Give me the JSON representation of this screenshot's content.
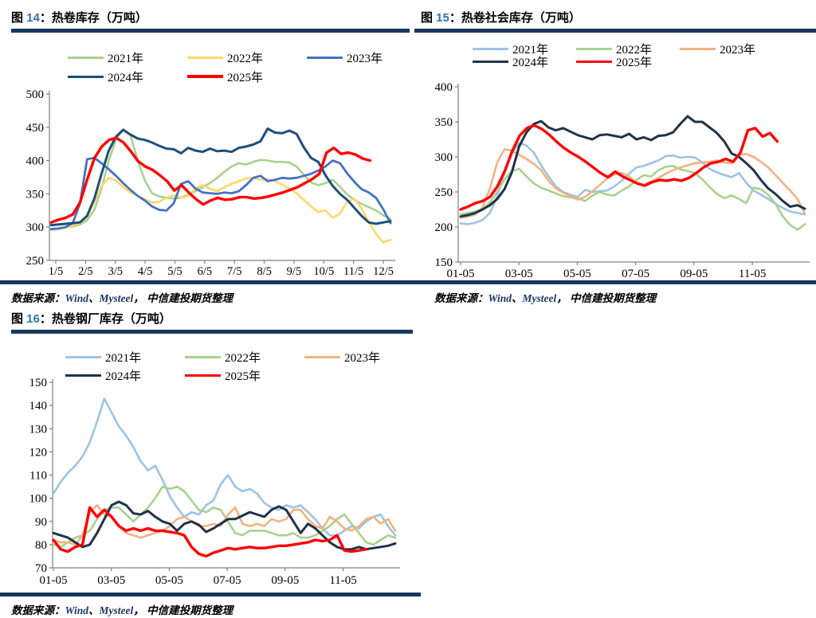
{
  "accent_colors": {
    "divider_navy": "#17375e",
    "title_number_blue": "#2e74b5",
    "source_en_blue": "#17375e"
  },
  "chart_data": [
    {
      "id": "fig14",
      "type": "line",
      "title": {
        "word": "图 ",
        "num": "14",
        "rest": "：热卷库存（万吨）"
      },
      "source": {
        "label": "数据来源：",
        "w1": "Wind",
        "sep1": "、",
        "w2": "Mysteel",
        "sep2": "， ",
        "rest": "中信建投期货整理"
      },
      "ylim": [
        250,
        500
      ],
      "y_step": 50,
      "x_domain_months": 11.4,
      "x_tick_months": [
        0,
        1,
        2,
        3,
        4,
        5,
        6,
        7,
        8,
        9,
        10,
        11
      ],
      "x_tick_labels": [
        "1/5",
        "2/5",
        "3/5",
        "4/5",
        "5/5",
        "6/5",
        "7/5",
        "8/5",
        "9/5",
        "10/5",
        "11/5",
        "12/5"
      ],
      "grid": false,
      "legend_position": "top",
      "series": [
        {
          "name": "2021",
          "label": "2021年",
          "color": "#a9d18e",
          "width": 2.6,
          "end_frac": 1,
          "values": [
            296,
            297,
            299,
            301,
            304,
            310,
            326,
            358,
            400,
            432,
            447,
            438,
            400,
            370,
            351,
            346,
            344,
            343,
            344,
            349,
            354,
            360,
            366,
            374,
            383,
            391,
            396,
            394,
            398,
            401,
            400,
            398,
            398,
            397,
            391,
            379,
            367,
            363,
            366,
            371,
            361,
            349,
            341,
            335,
            330,
            325,
            318,
            312
          ]
        },
        {
          "name": "2022",
          "label": "2022年",
          "color": "#ffd966",
          "width": 2.6,
          "end_frac": 1,
          "values": [
            296,
            297,
            299,
            302,
            306,
            315,
            338,
            362,
            374,
            370,
            360,
            352,
            347,
            342,
            337,
            338,
            344,
            348,
            344,
            347,
            358,
            363,
            358,
            354,
            360,
            365,
            369,
            373,
            374,
            371,
            372,
            369,
            364,
            358,
            351,
            341,
            331,
            323,
            325,
            314,
            320,
            338,
            343,
            328,
            308,
            290,
            277,
            281
          ]
        },
        {
          "name": "2023",
          "label": "2023年",
          "color": "#4472c4",
          "width": 2.8,
          "end_frac": 1,
          "values": [
            297,
            298,
            300,
            306,
            335,
            402,
            404,
            396,
            387,
            377,
            366,
            356,
            347,
            340,
            331,
            326,
            325,
            336,
            365,
            369,
            358,
            352,
            351,
            350,
            352,
            351,
            354,
            363,
            374,
            377,
            369,
            371,
            374,
            373,
            374,
            377,
            380,
            385,
            391,
            400,
            396,
            381,
            368,
            357,
            352,
            344,
            327,
            306
          ]
        },
        {
          "name": "2024",
          "label": "2024年",
          "color": "#1f4e79",
          "width": 3.0,
          "end_frac": 1,
          "values": [
            303,
            304,
            305,
            306,
            307,
            317,
            343,
            380,
            415,
            436,
            446,
            439,
            433,
            431,
            427,
            422,
            418,
            417,
            411,
            419,
            415,
            413,
            418,
            414,
            415,
            413,
            419,
            421,
            424,
            429,
            448,
            442,
            441,
            445,
            440,
            420,
            404,
            398,
            378,
            362,
            350,
            341,
            329,
            317,
            307,
            305,
            307,
            309
          ]
        },
        {
          "name": "2025",
          "label": "2025年",
          "color": "#ff0000",
          "width": 3.4,
          "end_frac": 0.94,
          "values": [
            307,
            311,
            314,
            319,
            337,
            372,
            404,
            421,
            431,
            434,
            427,
            414,
            399,
            391,
            386,
            378,
            369,
            355,
            363,
            352,
            342,
            334,
            340,
            344,
            341,
            342,
            345,
            345,
            343,
            344,
            346,
            349,
            352,
            356,
            360,
            366,
            372,
            380,
            412,
            419,
            410,
            412,
            409,
            403,
            400
          ]
        }
      ]
    },
    {
      "id": "fig15",
      "type": "line",
      "title": {
        "word": "图 ",
        "num": "15",
        "rest": "：热卷社会库存（万吨）"
      },
      "source": {
        "label": "数据来源：",
        "w1": "Wind",
        "sep1": "、",
        "w2": "Mysteel",
        "sep2": "， ",
        "rest": "中信建投期货整理"
      },
      "ylim": [
        150,
        400
      ],
      "y_step": 50,
      "x_domain_months": 11.8,
      "x_tick_months": [
        0,
        2,
        4,
        6,
        8,
        10
      ],
      "x_tick_labels": [
        "01-05",
        "03-05",
        "05-05",
        "07-05",
        "09-05",
        "11-05"
      ],
      "grid": false,
      "legend_position": "top",
      "series": [
        {
          "name": "2021",
          "label": "2021年",
          "color": "#9dc3e6",
          "width": 2.6,
          "end_frac": 1,
          "values": [
            205,
            204,
            206,
            210,
            220,
            244,
            278,
            305,
            320,
            316,
            306,
            288,
            272,
            258,
            250,
            246,
            243,
            253,
            250,
            251,
            252,
            258,
            266,
            276,
            285,
            287,
            291,
            295,
            301,
            302,
            299,
            300,
            299,
            292,
            283,
            278,
            274,
            271,
            277,
            263,
            252,
            246,
            240,
            233,
            227,
            222,
            220,
            218
          ]
        },
        {
          "name": "2022",
          "label": "2022年",
          "color": "#a9d18e",
          "width": 2.6,
          "end_frac": 1,
          "values": [
            218,
            220,
            222,
            226,
            235,
            250,
            268,
            280,
            283,
            272,
            262,
            256,
            252,
            248,
            244,
            242,
            241,
            237,
            245,
            250,
            246,
            245,
            252,
            258,
            267,
            274,
            272,
            281,
            286,
            287,
            282,
            280,
            277,
            268,
            257,
            247,
            241,
            245,
            240,
            234,
            256,
            254,
            246,
            233,
            215,
            203,
            196,
            204
          ]
        },
        {
          "name": "2023",
          "label": "2023年",
          "color": "#f4b183",
          "width": 2.6,
          "end_frac": 1,
          "values": [
            213,
            215,
            218,
            228,
            255,
            292,
            311,
            309,
            303,
            297,
            290,
            281,
            266,
            255,
            249,
            244,
            239,
            243,
            251,
            260,
            269,
            275,
            277,
            272,
            263,
            260,
            265,
            270,
            276,
            281,
            285,
            288,
            291,
            292,
            293,
            295,
            292,
            291,
            303,
            304,
            300,
            293,
            285,
            274,
            263,
            252,
            240,
            219
          ]
        },
        {
          "name": "2024",
          "label": "2024年",
          "color": "#1f3349",
          "width": 3.0,
          "end_frac": 1,
          "values": [
            215,
            217,
            220,
            225,
            231,
            240,
            254,
            278,
            315,
            335,
            347,
            351,
            342,
            338,
            341,
            336,
            331,
            328,
            325,
            331,
            332,
            330,
            328,
            333,
            325,
            328,
            324,
            330,
            331,
            335,
            347,
            358,
            350,
            350,
            342,
            334,
            322,
            305,
            300,
            291,
            281,
            267,
            255,
            247,
            237,
            229,
            231,
            226
          ]
        },
        {
          "name": "2025",
          "label": "2025年",
          "color": "#ff0000",
          "width": 3.4,
          "end_frac": 0.92,
          "values": [
            225,
            229,
            234,
            237,
            243,
            258,
            280,
            308,
            330,
            341,
            345,
            340,
            332,
            322,
            313,
            306,
            300,
            293,
            285,
            277,
            271,
            279,
            272,
            267,
            262,
            259,
            264,
            267,
            266,
            268,
            266,
            270,
            277,
            285,
            291,
            293,
            297,
            293,
            306,
            338,
            341,
            329,
            334,
            322
          ]
        }
      ]
    },
    {
      "id": "fig16",
      "type": "line",
      "title": {
        "word": "图 ",
        "num": "16",
        "rest": "：热卷钢厂库存（万吨）"
      },
      "source": {
        "label": "数据来源：",
        "w1": "Wind",
        "sep1": "、",
        "w2": "Mysteel",
        "sep2": "， ",
        "rest": "中信建投期货整理"
      },
      "ylim": [
        70,
        150
      ],
      "y_step": 10,
      "x_domain_months": 11.8,
      "x_tick_months": [
        0,
        2,
        4,
        6,
        8,
        10
      ],
      "x_tick_labels": [
        "01-05",
        "03-05",
        "05-05",
        "07-05",
        "09-05",
        "11-05"
      ],
      "grid": false,
      "legend_position": "top",
      "series": [
        {
          "name": "2021",
          "label": "2021年",
          "color": "#9dc3e6",
          "width": 2.6,
          "end_frac": 1,
          "values": [
            102,
            107,
            111,
            114,
            118,
            124,
            133,
            143,
            137,
            131,
            127,
            122,
            116,
            112,
            114,
            108,
            101,
            96,
            92,
            94,
            93,
            97,
            99,
            106,
            110,
            105,
            103,
            104,
            102,
            98,
            96,
            95,
            97,
            96,
            97,
            94,
            91,
            87,
            84,
            84,
            86,
            88,
            87,
            90,
            92,
            93,
            88,
            84
          ]
        },
        {
          "name": "2022",
          "label": "2022年",
          "color": "#a9d18e",
          "width": 2.6,
          "end_frac": 1,
          "values": [
            80,
            79,
            81,
            83,
            84,
            86,
            91,
            95,
            96,
            96,
            93,
            90,
            93,
            96,
            100,
            105,
            104,
            105,
            103,
            99,
            95,
            94,
            96,
            95,
            90,
            85,
            84,
            86,
            86,
            86,
            85,
            84,
            84,
            85,
            83,
            83,
            84,
            86,
            88,
            91,
            93,
            89,
            85,
            81,
            80,
            82,
            84,
            83
          ]
        },
        {
          "name": "2023",
          "label": "2023年",
          "color": "#f4b183",
          "width": 2.6,
          "end_frac": 1,
          "values": [
            82,
            81,
            81,
            80,
            84,
            94,
            97,
            93,
            92,
            88,
            85,
            84,
            83,
            84,
            85,
            86,
            88,
            91,
            92,
            90,
            88,
            88,
            89,
            88,
            93,
            96,
            89,
            88,
            89,
            88,
            91,
            90,
            91,
            95,
            95,
            91,
            88,
            87,
            92,
            90,
            87,
            86,
            88,
            91,
            92,
            89,
            91,
            86
          ]
        },
        {
          "name": "2024",
          "label": "2024年",
          "color": "#1f3349",
          "width": 3.0,
          "end_frac": 1,
          "values": [
            85,
            84,
            83,
            81,
            79,
            80,
            85,
            91,
            97,
            98.5,
            97,
            93.5,
            93,
            94.5,
            92,
            90,
            89,
            86,
            89,
            90,
            88.5,
            85.5,
            87,
            89,
            91,
            91,
            92.5,
            94,
            93,
            92,
            95,
            96.5,
            95,
            90,
            85,
            89,
            87,
            84,
            81,
            79,
            78,
            78,
            79,
            78,
            78.5,
            79,
            79.5,
            80.5
          ]
        },
        {
          "name": "2025",
          "label": "2025年",
          "color": "#ff0000",
          "width": 3.4,
          "end_frac": 0.915,
          "values": [
            82,
            78,
            77,
            79,
            80,
            96,
            92,
            95,
            92,
            88,
            86,
            87,
            86,
            87,
            86,
            86,
            85.5,
            85,
            84,
            79,
            76,
            75,
            76.5,
            77.5,
            78.5,
            78,
            78.5,
            79,
            78.5,
            78.5,
            79,
            79.5,
            79.5,
            80,
            80.5,
            81,
            82,
            81.5,
            82,
            84,
            77.5,
            77,
            77.5,
            78
          ]
        }
      ]
    }
  ]
}
